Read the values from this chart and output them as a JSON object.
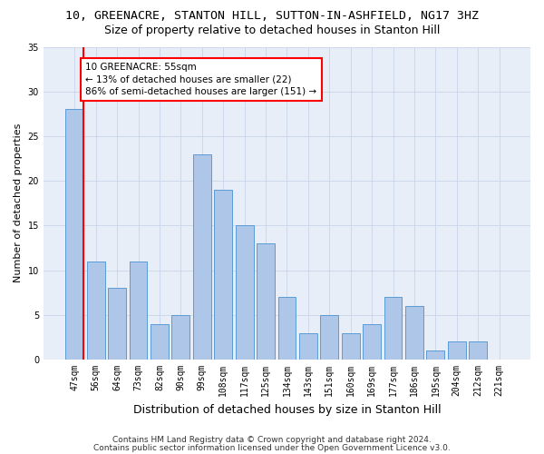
{
  "title": "10, GREENACRE, STANTON HILL, SUTTON-IN-ASHFIELD, NG17 3HZ",
  "subtitle": "Size of property relative to detached houses in Stanton Hill",
  "xlabel": "Distribution of detached houses by size in Stanton Hill",
  "ylabel": "Number of detached properties",
  "categories": [
    "47sqm",
    "56sqm",
    "64sqm",
    "73sqm",
    "82sqm",
    "90sqm",
    "99sqm",
    "108sqm",
    "117sqm",
    "125sqm",
    "134sqm",
    "143sqm",
    "151sqm",
    "160sqm",
    "169sqm",
    "177sqm",
    "186sqm",
    "195sqm",
    "204sqm",
    "212sqm",
    "221sqm"
  ],
  "values": [
    28,
    11,
    8,
    11,
    4,
    5,
    23,
    19,
    15,
    13,
    7,
    3,
    5,
    3,
    4,
    7,
    6,
    1,
    2,
    2,
    0
  ],
  "bar_color": "#aec6e8",
  "bar_edge_color": "#5b9bd5",
  "annotation_text": "10 GREENACRE: 55sqm\n← 13% of detached houses are smaller (22)\n86% of semi-detached houses are larger (151) →",
  "annotation_box_color": "white",
  "annotation_box_edge_color": "red",
  "red_line_color": "red",
  "ylim": [
    0,
    35
  ],
  "yticks": [
    0,
    5,
    10,
    15,
    20,
    25,
    30,
    35
  ],
  "grid_color": "#c8d4e8",
  "bg_color": "#e8eef8",
  "footer1": "Contains HM Land Registry data © Crown copyright and database right 2024.",
  "footer2": "Contains public sector information licensed under the Open Government Licence v3.0.",
  "title_fontsize": 9.5,
  "subtitle_fontsize": 9,
  "xlabel_fontsize": 9,
  "ylabel_fontsize": 8,
  "tick_fontsize": 7,
  "footer_fontsize": 6.5,
  "annotation_fontsize": 7.5
}
